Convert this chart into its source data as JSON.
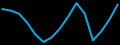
{
  "x": [
    0,
    1,
    2,
    3,
    4,
    5,
    6,
    7,
    8,
    9,
    10,
    11,
    12,
    13,
    14
  ],
  "y": [
    0.55,
    0.5,
    0.4,
    0.1,
    -0.3,
    -0.55,
    -0.4,
    -0.1,
    0.3,
    0.75,
    0.4,
    -0.5,
    -0.2,
    0.2,
    0.7
  ],
  "line_color": "#1b9fd5",
  "linewidth": 1.5,
  "background_color": "#000000"
}
